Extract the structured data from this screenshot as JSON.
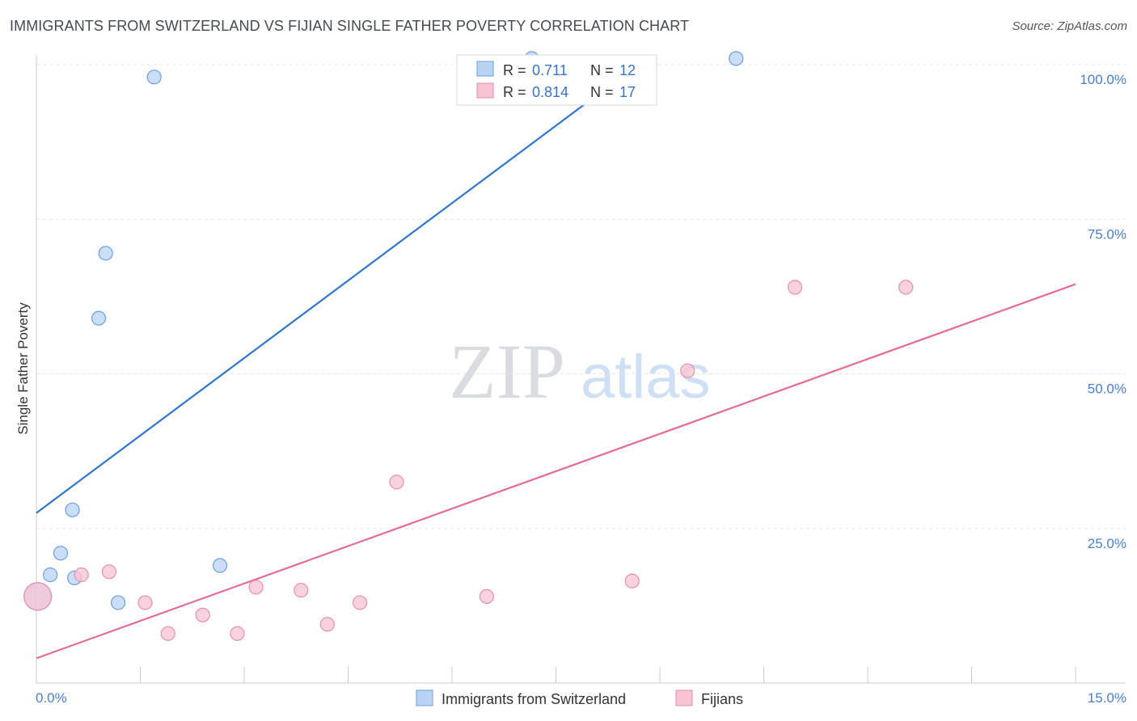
{
  "header": {
    "title": "IMMIGRANTS FROM SWITZERLAND VS FIJIAN SINGLE FATHER POVERTY CORRELATION CHART",
    "source": "Source: ZipAtlas.com"
  },
  "watermark": {
    "zip": "ZIP",
    "atlas": "atlas"
  },
  "legend_top": {
    "rows": [
      {
        "r_label": "R =",
        "r_value": "0.711",
        "n_label": "N =",
        "n_value": "12"
      },
      {
        "r_label": "R =",
        "r_value": "0.814",
        "n_label": "N =",
        "n_value": "17"
      }
    ]
  },
  "chart_data": {
    "type": "scatter",
    "title": "IMMIGRANTS FROM SWITZERLAND VS FIJIAN SINGLE FATHER POVERTY CORRELATION CHART",
    "xlabel": "",
    "ylabel": "Single Father Poverty",
    "xlim": [
      0,
      15
    ],
    "ylim": [
      0,
      102
    ],
    "x_tick_labels": [
      "0.0%",
      "15.0%"
    ],
    "y_ticks": [
      25,
      50,
      75,
      100
    ],
    "y_tick_labels": [
      "25.0%",
      "50.0%",
      "75.0%",
      "100.0%"
    ],
    "grid": true,
    "colors": {
      "blue": "#2f76cc",
      "pink": "#e36c96",
      "blue_fill": "#b9d3f5",
      "pink_fill": "#f8c3d3",
      "tick_text": "#4a7fd0"
    },
    "series": [
      {
        "name": "Immigrants from Switzerland",
        "r": 0.711,
        "n": 12,
        "points": [
          {
            "x": 0.02,
            "y": 14,
            "big": true
          },
          {
            "x": 0.2,
            "y": 17.5
          },
          {
            "x": 0.35,
            "y": 21
          },
          {
            "x": 0.55,
            "y": 17
          },
          {
            "x": 0.52,
            "y": 28
          },
          {
            "x": 0.9,
            "y": 59
          },
          {
            "x": 1.0,
            "y": 69.5
          },
          {
            "x": 1.18,
            "y": 13
          },
          {
            "x": 1.7,
            "y": 98
          },
          {
            "x": 2.65,
            "y": 19
          },
          {
            "x": 7.15,
            "y": 101
          },
          {
            "x": 10.1,
            "y": 101
          }
        ],
        "trend": {
          "x": [
            0,
            8.8
          ],
          "y": [
            27.5,
            101
          ]
        }
      },
      {
        "name": "Fijians",
        "r": 0.814,
        "n": 17,
        "points": [
          {
            "x": 0.02,
            "y": 14,
            "big": true
          },
          {
            "x": 0.65,
            "y": 17.5
          },
          {
            "x": 1.05,
            "y": 18
          },
          {
            "x": 1.57,
            "y": 13
          },
          {
            "x": 1.9,
            "y": 8
          },
          {
            "x": 2.4,
            "y": 11
          },
          {
            "x": 2.9,
            "y": 8
          },
          {
            "x": 3.17,
            "y": 15.5
          },
          {
            "x": 3.82,
            "y": 15
          },
          {
            "x": 4.2,
            "y": 9.5
          },
          {
            "x": 4.67,
            "y": 13
          },
          {
            "x": 5.2,
            "y": 32.5
          },
          {
            "x": 6.5,
            "y": 14
          },
          {
            "x": 8.6,
            "y": 16.5
          },
          {
            "x": 9.4,
            "y": 50.5
          },
          {
            "x": 10.95,
            "y": 64
          },
          {
            "x": 12.55,
            "y": 64
          }
        ],
        "trend": {
          "x": [
            0,
            15
          ],
          "y": [
            4,
            64.5
          ]
        }
      }
    ]
  },
  "legend_bottom": {
    "items": [
      "Immigrants from Switzerland",
      "Fijians"
    ]
  }
}
